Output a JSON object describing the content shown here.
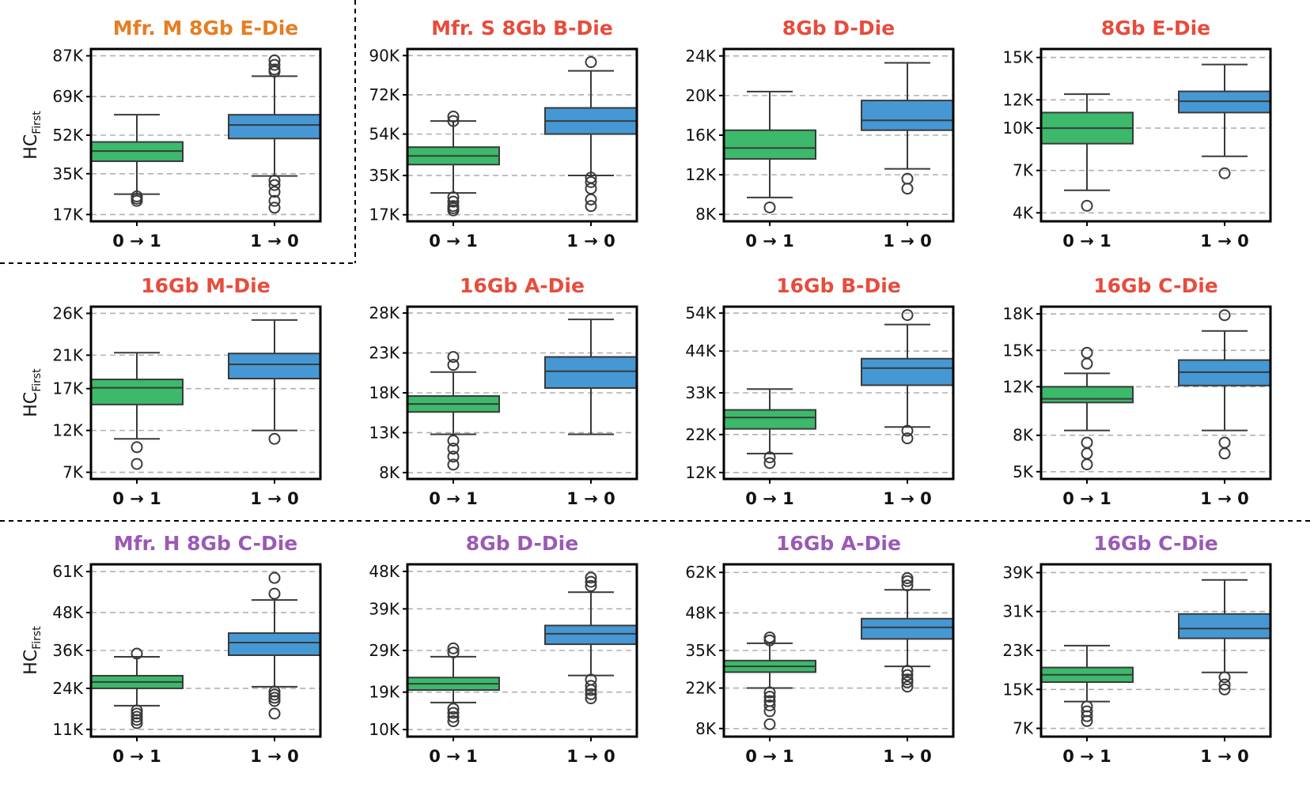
{
  "figure": {
    "ylabel": "HC",
    "ylabel_sub": "First",
    "colors": {
      "zero_to_one": "#3cb96b",
      "one_to_zero": "#4598d3",
      "mfr_m": "#e67e22",
      "mfr_s": "#e74c3c",
      "mfr_h": "#9b59b6",
      "grid": "#b0b0b0",
      "axis": "#000000",
      "median": "#3a3a3a"
    }
  },
  "chart_data": [
    {
      "type": "box",
      "title": "Mfr. M 8Gb E-Die",
      "title_color": "#e67e22",
      "categories": [
        "0 → 1",
        "1 → 0"
      ],
      "yticks": [
        17000,
        35000,
        52000,
        69000,
        87000
      ],
      "ytick_labels": [
        "17K",
        "35K",
        "52K",
        "69K",
        "87K"
      ],
      "ylim": [
        14000,
        90000
      ],
      "grid": true,
      "series": [
        {
          "whisker_low": 26000,
          "q1": 40500,
          "median": 45000,
          "q3": 49000,
          "whisker_high": 61000,
          "outliers": [
            23000,
            24000,
            25000
          ]
        },
        {
          "whisker_low": 34000,
          "q1": 50500,
          "median": 56500,
          "q3": 61000,
          "whisker_high": 78000,
          "outliers": [
            20000,
            23000,
            27000,
            30000,
            32000,
            80000,
            81000,
            83000,
            85000
          ]
        }
      ]
    },
    {
      "type": "box",
      "title": "Mfr. S 8Gb B-Die",
      "title_color": "#e74c3c",
      "categories": [
        "0 → 1",
        "1 → 0"
      ],
      "yticks": [
        17000,
        35000,
        54000,
        72000,
        90000
      ],
      "ytick_labels": [
        "17K",
        "35K",
        "54K",
        "72K",
        "90K"
      ],
      "ylim": [
        14000,
        93000
      ],
      "grid": true,
      "series": [
        {
          "whisker_low": 27000,
          "q1": 40000,
          "median": 44000,
          "q3": 48000,
          "whisker_high": 60000,
          "outliers": [
            19000,
            20000,
            21000,
            23000,
            25000,
            60000,
            62000
          ]
        },
        {
          "whisker_low": 35000,
          "q1": 54000,
          "median": 60000,
          "q3": 66000,
          "whisker_high": 83000,
          "outliers": [
            21000,
            24000,
            29000,
            32000,
            34000,
            87000
          ]
        }
      ]
    },
    {
      "type": "box",
      "title": "8Gb D-Die",
      "title_color": "#e74c3c",
      "categories": [
        "0 → 1",
        "1 → 0"
      ],
      "yticks": [
        8000,
        12000,
        16000,
        20000,
        24000
      ],
      "ytick_labels": [
        "8K",
        "12K",
        "16K",
        "20K",
        "24K"
      ],
      "ylim": [
        7300,
        24700
      ],
      "grid": true,
      "series": [
        {
          "whisker_low": 9700,
          "q1": 13600,
          "median": 14700,
          "q3": 16500,
          "whisker_high": 20400,
          "outliers": [
            8700
          ]
        },
        {
          "whisker_low": 12600,
          "q1": 16500,
          "median": 17500,
          "q3": 19500,
          "whisker_high": 23300,
          "outliers": [
            10600,
            11600
          ]
        }
      ]
    },
    {
      "type": "box",
      "title": "8Gb E-Die",
      "title_color": "#e74c3c",
      "categories": [
        "0 → 1",
        "1 → 0"
      ],
      "yticks": [
        4000,
        7000,
        10000,
        12000,
        15000
      ],
      "ytick_labels": [
        "4K",
        "7K",
        "10K",
        "12K",
        "15K"
      ],
      "ylim": [
        3400,
        15600
      ],
      "grid": true,
      "series": [
        {
          "whisker_low": 5600,
          "q1": 8900,
          "median": 10000,
          "q3": 11100,
          "whisker_high": 12400,
          "outliers": [
            4500
          ]
        },
        {
          "whisker_low": 8000,
          "q1": 11100,
          "median": 11900,
          "q3": 12600,
          "whisker_high": 14500,
          "outliers": [
            6800
          ]
        }
      ]
    },
    {
      "type": "box",
      "title": "16Gb M-Die",
      "title_color": "#e74c3c",
      "categories": [
        "0 → 1",
        "1 → 0"
      ],
      "yticks": [
        7000,
        12000,
        17000,
        21000,
        26000
      ],
      "ytick_labels": [
        "7K",
        "12K",
        "17K",
        "21K",
        "26K"
      ],
      "ylim": [
        6200,
        26800
      ],
      "grid": true,
      "series": [
        {
          "whisker_low": 11000,
          "q1": 15100,
          "median": 17100,
          "q3": 18100,
          "whisker_high": 21300,
          "outliers": [
            8000,
            10000
          ]
        },
        {
          "whisker_low": 12000,
          "q1": 18200,
          "median": 19900,
          "q3": 21200,
          "whisker_high": 25200,
          "outliers": [
            11000
          ]
        }
      ]
    },
    {
      "type": "box",
      "title": "16Gb A-Die",
      "title_color": "#e74c3c",
      "categories": [
        "0 → 1",
        "1 → 0"
      ],
      "yticks": [
        8000,
        13000,
        18000,
        23000,
        28000
      ],
      "ytick_labels": [
        "8K",
        "13K",
        "18K",
        "23K",
        "28K"
      ],
      "ylim": [
        7200,
        28800
      ],
      "grid": true,
      "series": [
        {
          "whisker_low": 12800,
          "q1": 15600,
          "median": 16600,
          "q3": 17600,
          "whisker_high": 20600,
          "outliers": [
            9000,
            10000,
            11000,
            12000,
            21500,
            22500
          ]
        },
        {
          "whisker_low": 12800,
          "q1": 18600,
          "median": 20700,
          "q3": 22500,
          "whisker_high": 27200,
          "outliers": []
        }
      ]
    },
    {
      "type": "box",
      "title": "16Gb B-Die",
      "title_color": "#e74c3c",
      "categories": [
        "0 → 1",
        "1 → 0"
      ],
      "yticks": [
        12000,
        22000,
        33000,
        44000,
        54000
      ],
      "ytick_labels": [
        "12K",
        "22K",
        "33K",
        "44K",
        "54K"
      ],
      "ylim": [
        10300,
        55700
      ],
      "grid": true,
      "series": [
        {
          "whisker_low": 17000,
          "q1": 23500,
          "median": 26500,
          "q3": 28500,
          "whisker_high": 34000,
          "outliers": [
            14500,
            16000
          ]
        },
        {
          "whisker_low": 24000,
          "q1": 35000,
          "median": 39500,
          "q3": 42000,
          "whisker_high": 51000,
          "outliers": [
            21000,
            23000,
            53500
          ]
        }
      ]
    },
    {
      "type": "box",
      "title": "16Gb C-Die",
      "title_color": "#e74c3c",
      "categories": [
        "0 → 1",
        "1 → 0"
      ],
      "yticks": [
        5000,
        8000,
        12000,
        15000,
        18000
      ],
      "ytick_labels": [
        "5K",
        "8K",
        "12K",
        "15K",
        "18K"
      ],
      "ylim": [
        4400,
        18600
      ],
      "grid": true,
      "series": [
        {
          "whisker_low": 8400,
          "q1": 10700,
          "median": 11000,
          "q3": 12000,
          "whisker_high": 13100,
          "outliers": [
            5600,
            6500,
            7400,
            13900,
            14800
          ]
        },
        {
          "whisker_low": 8400,
          "q1": 12100,
          "median": 13200,
          "q3": 14200,
          "whisker_high": 16600,
          "outliers": [
            6500,
            7400,
            17900
          ]
        }
      ]
    },
    {
      "type": "box",
      "title": "Mfr. H 8Gb C-Die",
      "title_color": "#9b59b6",
      "categories": [
        "0 → 1",
        "1 → 0"
      ],
      "yticks": [
        11000,
        24000,
        36000,
        48000,
        61000
      ],
      "ytick_labels": [
        "11K",
        "24K",
        "36K",
        "48K",
        "61K"
      ],
      "ylim": [
        8700,
        63300
      ],
      "grid": true,
      "series": [
        {
          "whisker_low": 18500,
          "q1": 24000,
          "median": 26000,
          "q3": 28000,
          "whisker_high": 34000,
          "outliers": [
            13000,
            14000,
            15000,
            16000,
            17000,
            35000
          ]
        },
        {
          "whisker_low": 24500,
          "q1": 34500,
          "median": 38500,
          "q3": 41500,
          "whisker_high": 52000,
          "outliers": [
            16000,
            20000,
            21000,
            22000,
            23000,
            54000,
            59000
          ]
        }
      ]
    },
    {
      "type": "box",
      "title": "8Gb D-Die",
      "title_color": "#9b59b6",
      "categories": [
        "0 → 1",
        "1 → 0"
      ],
      "yticks": [
        10000,
        19000,
        29000,
        39000,
        48000
      ],
      "ytick_labels": [
        "10K",
        "19K",
        "29K",
        "39K",
        "48K"
      ],
      "ylim": [
        8300,
        49700
      ],
      "grid": true,
      "series": [
        {
          "whisker_low": 16500,
          "q1": 19500,
          "median": 21000,
          "q3": 22500,
          "whisker_high": 27500,
          "outliers": [
            12000,
            13000,
            14000,
            15000,
            28500,
            29500
          ]
        },
        {
          "whisker_low": 23000,
          "q1": 30500,
          "median": 33000,
          "q3": 35000,
          "whisker_high": 43000,
          "outliers": [
            17500,
            18500,
            19500,
            20500,
            22000,
            44500,
            45500,
            46500
          ]
        }
      ]
    },
    {
      "type": "box",
      "title": "16Gb A-Die",
      "title_color": "#9b59b6",
      "categories": [
        "0 → 1",
        "1 → 0"
      ],
      "yticks": [
        8000,
        22000,
        35000,
        48000,
        62000
      ],
      "ytick_labels": [
        "8K",
        "22K",
        "35K",
        "48K",
        "62K"
      ],
      "ylim": [
        5200,
        64800
      ],
      "grid": true,
      "series": [
        {
          "whisker_low": 22000,
          "q1": 27500,
          "median": 29500,
          "q3": 31500,
          "whisker_high": 37500,
          "outliers": [
            9500,
            14000,
            16000,
            17500,
            19000,
            20500,
            38500,
            39500
          ]
        },
        {
          "whisker_low": 29500,
          "q1": 39000,
          "median": 43000,
          "q3": 46000,
          "whisker_high": 56000,
          "outliers": [
            22500,
            24000,
            25000,
            26500,
            28000,
            57500,
            59000,
            60000
          ]
        }
      ]
    },
    {
      "type": "box",
      "title": "16Gb C-Die",
      "title_color": "#9b59b6",
      "categories": [
        "0 → 1",
        "1 → 0"
      ],
      "yticks": [
        7000,
        15000,
        23000,
        31000,
        39000
      ],
      "ytick_labels": [
        "7K",
        "15K",
        "23K",
        "31K",
        "39K"
      ],
      "ylim": [
        5300,
        40700
      ],
      "grid": true,
      "series": [
        {
          "whisker_low": 12500,
          "q1": 16500,
          "median": 18000,
          "q3": 19500,
          "whisker_high": 24000,
          "outliers": [
            8500,
            9500,
            10500,
            11500
          ]
        },
        {
          "whisker_low": 18500,
          "q1": 25500,
          "median": 27500,
          "q3": 30500,
          "whisker_high": 37500,
          "outliers": [
            15000,
            16000,
            17500
          ]
        }
      ]
    }
  ]
}
